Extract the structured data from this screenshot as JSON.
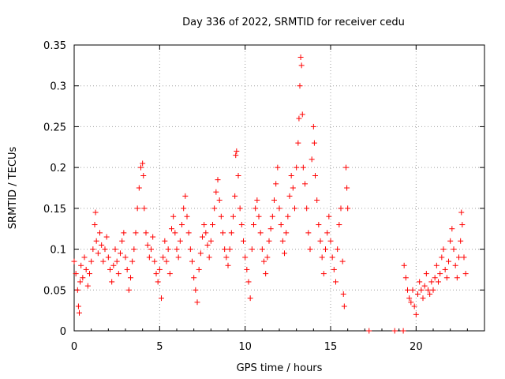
{
  "chart_data": {
    "type": "scatter",
    "title": "Day 336 of 2022, SRMTID for receiver cedu",
    "xlabel": "GPS time / hours",
    "ylabel": "SRMTID / TECUs",
    "xlim": [
      0,
      24
    ],
    "ylim": [
      0,
      0.35
    ],
    "xticks": [
      0,
      5,
      10,
      15,
      20
    ],
    "xtick_labels": [
      "0",
      "5",
      "10",
      "15",
      "20"
    ],
    "yticks": [
      0,
      0.05,
      0.1,
      0.15,
      0.2,
      0.25,
      0.3,
      0.35
    ],
    "ytick_labels": [
      "0",
      "0.05",
      "0.1",
      "0.15",
      "0.2",
      "0.25",
      "0.3",
      "0.35"
    ],
    "grid": true,
    "legend": "none",
    "marker": "plus",
    "series": [
      {
        "name": "SRMTID",
        "color": "#ff0000",
        "points": [
          [
            0.0,
            0.085
          ],
          [
            0.1,
            0.07
          ],
          [
            0.2,
            0.05
          ],
          [
            0.25,
            0.03
          ],
          [
            0.3,
            0.022
          ],
          [
            0.35,
            0.06
          ],
          [
            0.4,
            0.08
          ],
          [
            0.5,
            0.065
          ],
          [
            0.6,
            0.09
          ],
          [
            0.7,
            0.075
          ],
          [
            0.8,
            0.055
          ],
          [
            0.9,
            0.07
          ],
          [
            1.0,
            0.085
          ],
          [
            1.1,
            0.1
          ],
          [
            1.2,
            0.13
          ],
          [
            1.25,
            0.145
          ],
          [
            1.3,
            0.11
          ],
          [
            1.4,
            0.095
          ],
          [
            1.5,
            0.12
          ],
          [
            1.6,
            0.105
          ],
          [
            1.7,
            0.085
          ],
          [
            1.8,
            0.1
          ],
          [
            1.9,
            0.115
          ],
          [
            2.0,
            0.09
          ],
          [
            2.1,
            0.075
          ],
          [
            2.2,
            0.06
          ],
          [
            2.3,
            0.08
          ],
          [
            2.4,
            0.1
          ],
          [
            2.5,
            0.085
          ],
          [
            2.6,
            0.07
          ],
          [
            2.7,
            0.095
          ],
          [
            2.8,
            0.11
          ],
          [
            2.9,
            0.12
          ],
          [
            3.0,
            0.09
          ],
          [
            3.1,
            0.075
          ],
          [
            3.2,
            0.05
          ],
          [
            3.3,
            0.065
          ],
          [
            3.4,
            0.085
          ],
          [
            3.5,
            0.1
          ],
          [
            3.6,
            0.12
          ],
          [
            3.7,
            0.15
          ],
          [
            3.8,
            0.175
          ],
          [
            3.9,
            0.2
          ],
          [
            4.0,
            0.205
          ],
          [
            4.05,
            0.19
          ],
          [
            4.1,
            0.15
          ],
          [
            4.2,
            0.12
          ],
          [
            4.3,
            0.105
          ],
          [
            4.4,
            0.09
          ],
          [
            4.5,
            0.1
          ],
          [
            4.6,
            0.115
          ],
          [
            4.7,
            0.085
          ],
          [
            4.8,
            0.07
          ],
          [
            4.9,
            0.06
          ],
          [
            5.0,
            0.075
          ],
          [
            5.1,
            0.04
          ],
          [
            5.2,
            0.09
          ],
          [
            5.3,
            0.11
          ],
          [
            5.4,
            0.085
          ],
          [
            5.5,
            0.1
          ],
          [
            5.6,
            0.07
          ],
          [
            5.7,
            0.125
          ],
          [
            5.8,
            0.14
          ],
          [
            5.9,
            0.12
          ],
          [
            6.0,
            0.1
          ],
          [
            6.1,
            0.09
          ],
          [
            6.2,
            0.11
          ],
          [
            6.3,
            0.13
          ],
          [
            6.4,
            0.15
          ],
          [
            6.5,
            0.165
          ],
          [
            6.6,
            0.14
          ],
          [
            6.7,
            0.12
          ],
          [
            6.8,
            0.1
          ],
          [
            6.9,
            0.085
          ],
          [
            7.0,
            0.065
          ],
          [
            7.1,
            0.05
          ],
          [
            7.2,
            0.035
          ],
          [
            7.3,
            0.075
          ],
          [
            7.4,
            0.095
          ],
          [
            7.5,
            0.115
          ],
          [
            7.6,
            0.13
          ],
          [
            7.7,
            0.12
          ],
          [
            7.8,
            0.105
          ],
          [
            7.9,
            0.09
          ],
          [
            8.0,
            0.11
          ],
          [
            8.1,
            0.13
          ],
          [
            8.2,
            0.15
          ],
          [
            8.3,
            0.17
          ],
          [
            8.4,
            0.185
          ],
          [
            8.5,
            0.16
          ],
          [
            8.6,
            0.14
          ],
          [
            8.7,
            0.12
          ],
          [
            8.8,
            0.1
          ],
          [
            8.9,
            0.09
          ],
          [
            9.0,
            0.08
          ],
          [
            9.1,
            0.1
          ],
          [
            9.2,
            0.12
          ],
          [
            9.3,
            0.14
          ],
          [
            9.4,
            0.165
          ],
          [
            9.45,
            0.215
          ],
          [
            9.5,
            0.22
          ],
          [
            9.6,
            0.19
          ],
          [
            9.7,
            0.15
          ],
          [
            9.8,
            0.13
          ],
          [
            9.9,
            0.11
          ],
          [
            10.0,
            0.09
          ],
          [
            10.1,
            0.075
          ],
          [
            10.2,
            0.06
          ],
          [
            10.3,
            0.04
          ],
          [
            10.4,
            0.1
          ],
          [
            10.5,
            0.13
          ],
          [
            10.6,
            0.15
          ],
          [
            10.7,
            0.16
          ],
          [
            10.8,
            0.14
          ],
          [
            10.9,
            0.12
          ],
          [
            11.0,
            0.1
          ],
          [
            11.1,
            0.085
          ],
          [
            11.2,
            0.07
          ],
          [
            11.3,
            0.09
          ],
          [
            11.4,
            0.11
          ],
          [
            11.5,
            0.125
          ],
          [
            11.6,
            0.14
          ],
          [
            11.7,
            0.16
          ],
          [
            11.8,
            0.18
          ],
          [
            11.9,
            0.2
          ],
          [
            12.0,
            0.15
          ],
          [
            12.1,
            0.13
          ],
          [
            12.2,
            0.11
          ],
          [
            12.3,
            0.095
          ],
          [
            12.4,
            0.12
          ],
          [
            12.5,
            0.14
          ],
          [
            12.6,
            0.165
          ],
          [
            12.7,
            0.19
          ],
          [
            12.8,
            0.175
          ],
          [
            12.9,
            0.15
          ],
          [
            13.0,
            0.2
          ],
          [
            13.1,
            0.23
          ],
          [
            13.15,
            0.26
          ],
          [
            13.2,
            0.3
          ],
          [
            13.25,
            0.335
          ],
          [
            13.3,
            0.325
          ],
          [
            13.35,
            0.265
          ],
          [
            13.4,
            0.2
          ],
          [
            13.5,
            0.18
          ],
          [
            13.6,
            0.15
          ],
          [
            13.7,
            0.12
          ],
          [
            13.8,
            0.1
          ],
          [
            13.9,
            0.21
          ],
          [
            14.0,
            0.25
          ],
          [
            14.05,
            0.23
          ],
          [
            14.1,
            0.19
          ],
          [
            14.2,
            0.16
          ],
          [
            14.3,
            0.13
          ],
          [
            14.4,
            0.11
          ],
          [
            14.5,
            0.09
          ],
          [
            14.6,
            0.07
          ],
          [
            14.7,
            0.1
          ],
          [
            14.8,
            0.12
          ],
          [
            14.9,
            0.14
          ],
          [
            15.0,
            0.11
          ],
          [
            15.1,
            0.09
          ],
          [
            15.2,
            0.075
          ],
          [
            15.3,
            0.06
          ],
          [
            15.4,
            0.1
          ],
          [
            15.5,
            0.13
          ],
          [
            15.6,
            0.15
          ],
          [
            15.7,
            0.085
          ],
          [
            15.75,
            0.045
          ],
          [
            15.8,
            0.03
          ],
          [
            15.9,
            0.2
          ],
          [
            15.95,
            0.175
          ],
          [
            16.0,
            0.15
          ],
          [
            17.25,
            0.0
          ],
          [
            18.75,
            0.0
          ],
          [
            19.25,
            0.0
          ],
          [
            19.3,
            0.08
          ],
          [
            19.4,
            0.065
          ],
          [
            19.5,
            0.05
          ],
          [
            19.6,
            0.04
          ],
          [
            19.7,
            0.035
          ],
          [
            19.8,
            0.05
          ],
          [
            19.9,
            0.03
          ],
          [
            20.0,
            0.02
          ],
          [
            20.1,
            0.045
          ],
          [
            20.2,
            0.06
          ],
          [
            20.3,
            0.05
          ],
          [
            20.4,
            0.04
          ],
          [
            20.5,
            0.055
          ],
          [
            20.6,
            0.07
          ],
          [
            20.7,
            0.05
          ],
          [
            20.8,
            0.045
          ],
          [
            20.9,
            0.06
          ],
          [
            21.0,
            0.05
          ],
          [
            21.1,
            0.065
          ],
          [
            21.2,
            0.08
          ],
          [
            21.3,
            0.06
          ],
          [
            21.4,
            0.07
          ],
          [
            21.5,
            0.09
          ],
          [
            21.6,
            0.1
          ],
          [
            21.7,
            0.075
          ],
          [
            21.8,
            0.065
          ],
          [
            21.9,
            0.085
          ],
          [
            22.0,
            0.11
          ],
          [
            22.1,
            0.125
          ],
          [
            22.2,
            0.1
          ],
          [
            22.3,
            0.08
          ],
          [
            22.4,
            0.065
          ],
          [
            22.5,
            0.09
          ],
          [
            22.6,
            0.11
          ],
          [
            22.65,
            0.145
          ],
          [
            22.7,
            0.13
          ],
          [
            22.8,
            0.09
          ],
          [
            22.9,
            0.07
          ]
        ]
      }
    ]
  }
}
